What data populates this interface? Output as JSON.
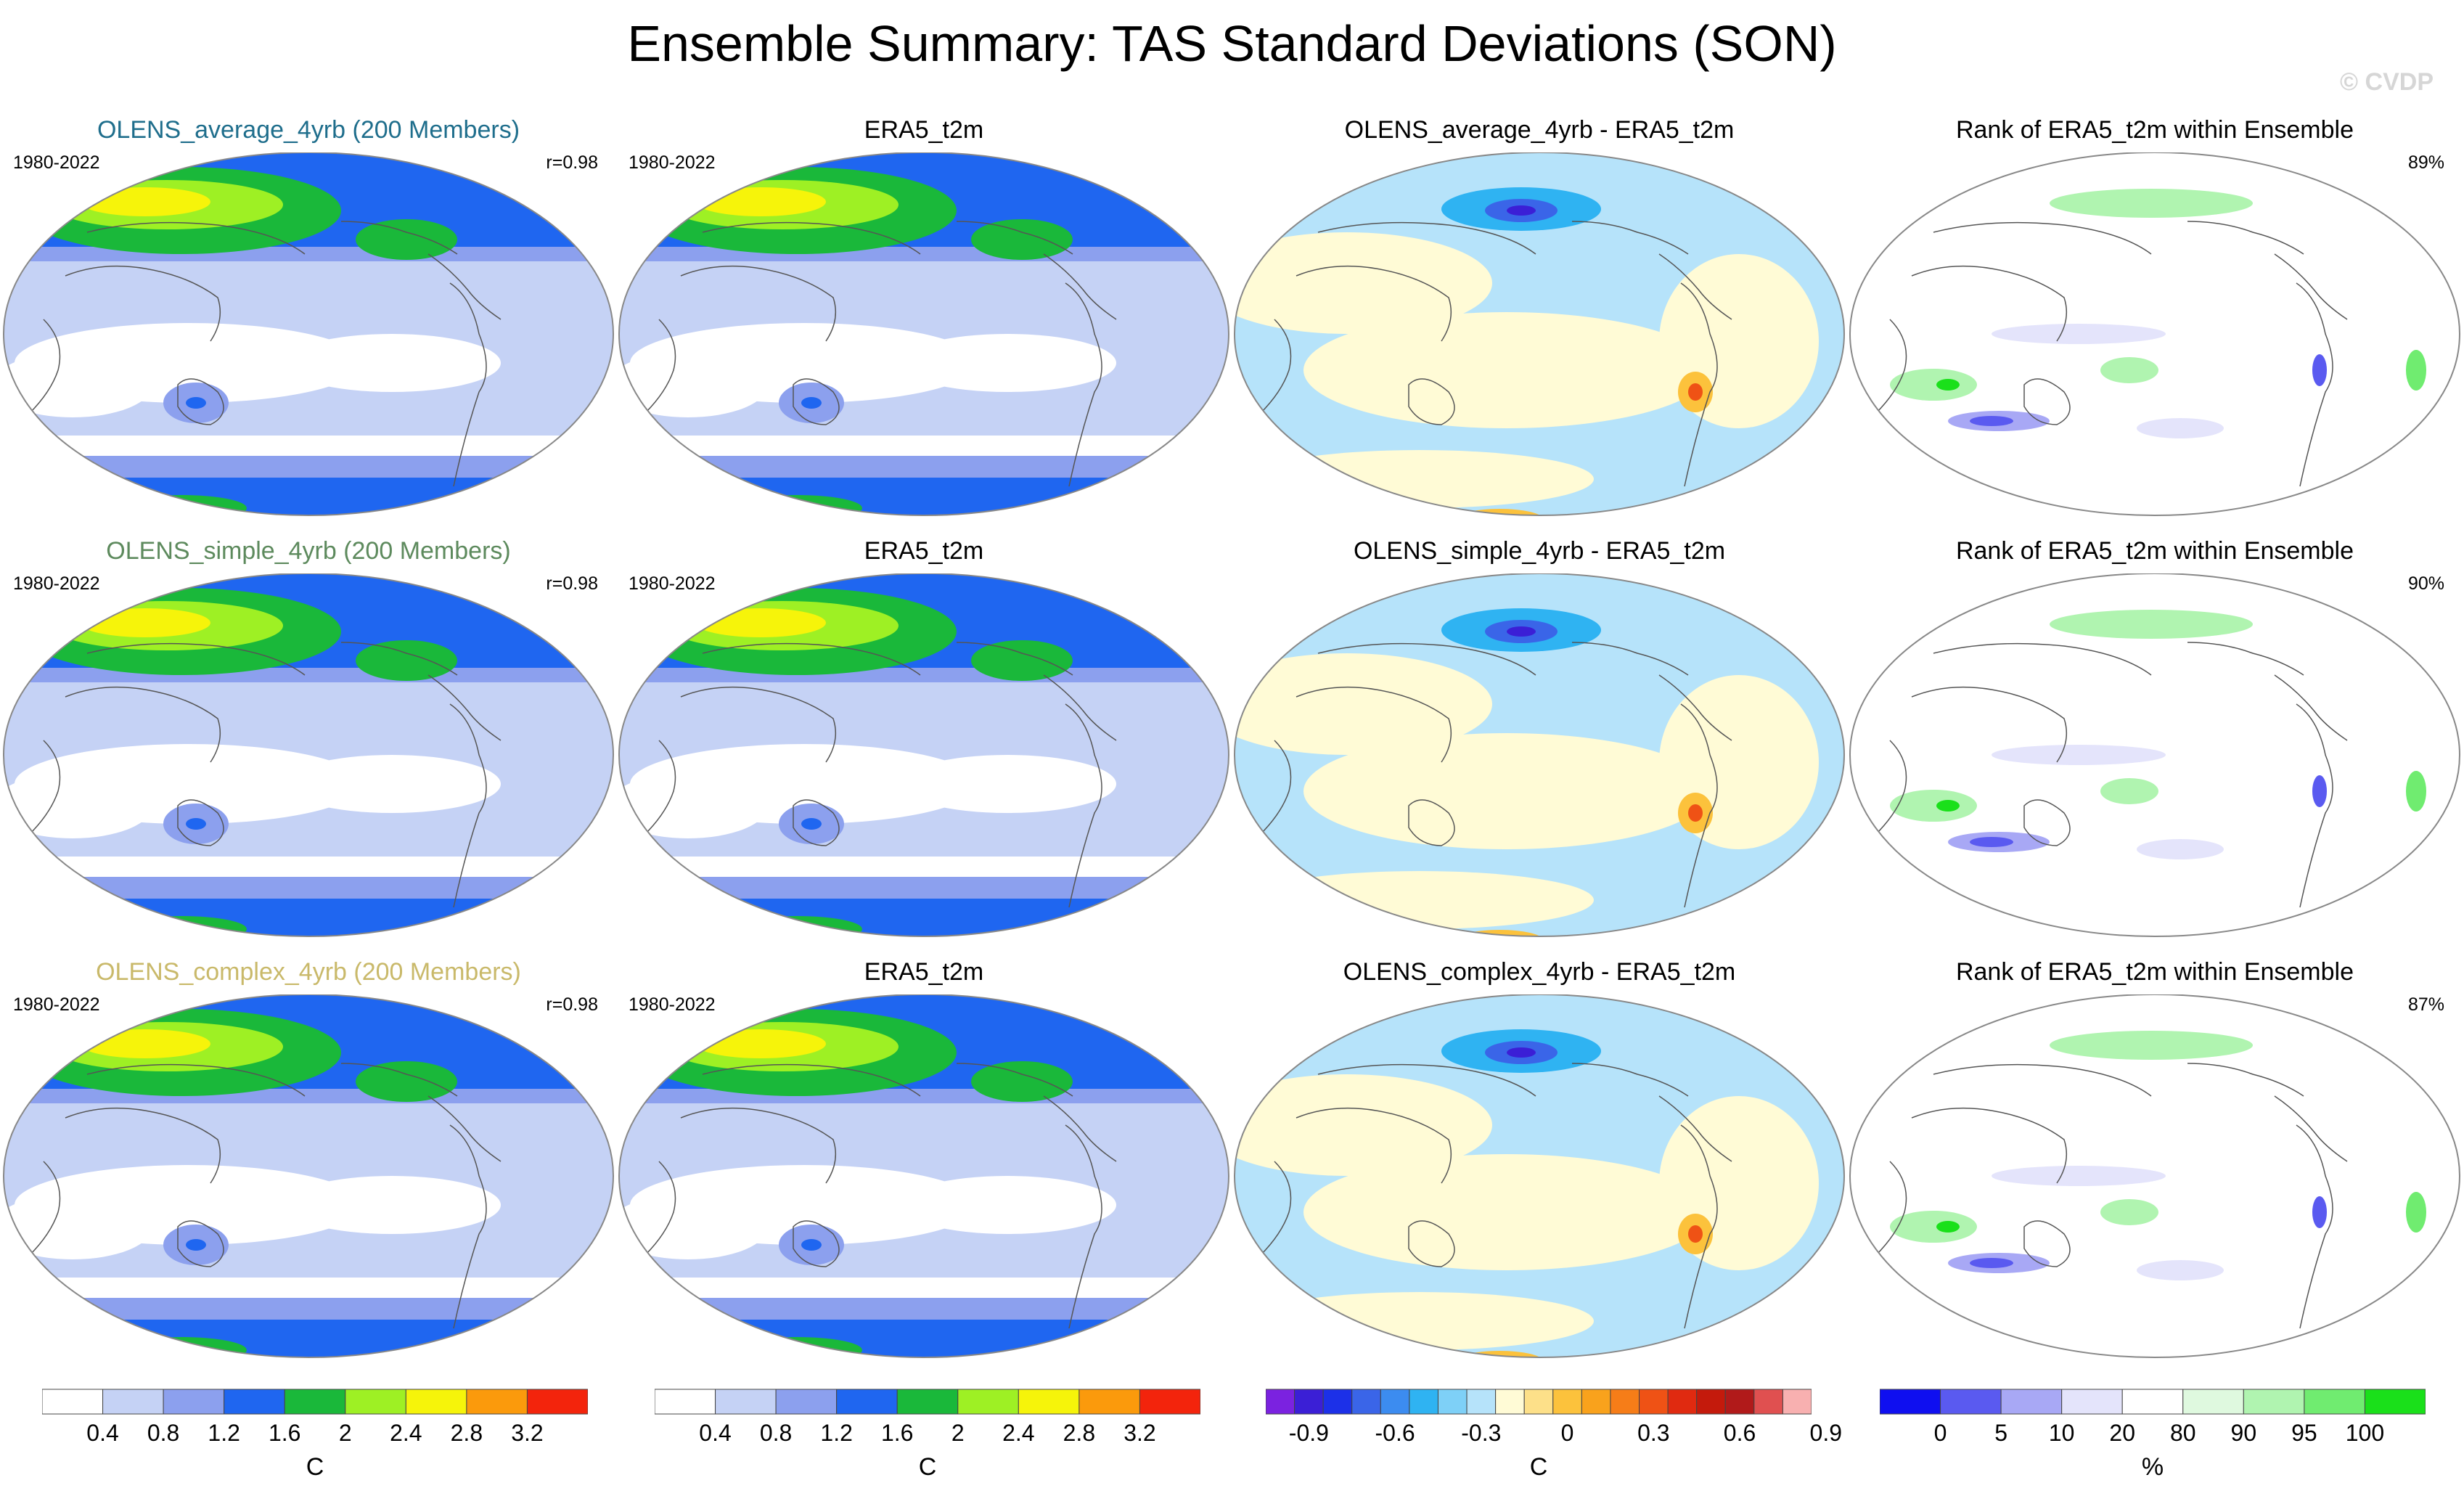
{
  "title": "Ensemble Summary: TAS Standard Deviations (SON)",
  "copyright": "© CVDP",
  "panels": [
    {
      "title": "OLENS_average_4yrb (200 Members)",
      "title_color": "#1f6e8c",
      "years": "1980-2022",
      "corr": "r=0.98",
      "kind": "std"
    },
    {
      "title": "ERA5_t2m",
      "title_color": "#000000",
      "years": "1980-2022",
      "corr": "",
      "kind": "std"
    },
    {
      "title": "OLENS_average_4yrb - ERA5_t2m",
      "title_color": "#000000",
      "years": "",
      "corr": "",
      "kind": "diff"
    },
    {
      "title": "Rank of ERA5_t2m within Ensemble",
      "title_color": "#000000",
      "years": "",
      "corr": "89%",
      "kind": "rank"
    },
    {
      "title": "OLENS_simple_4yrb (200 Members)",
      "title_color": "#5d8a5d",
      "years": "1980-2022",
      "corr": "r=0.98",
      "kind": "std"
    },
    {
      "title": "ERA5_t2m",
      "title_color": "#000000",
      "years": "1980-2022",
      "corr": "",
      "kind": "std"
    },
    {
      "title": "OLENS_simple_4yrb - ERA5_t2m",
      "title_color": "#000000",
      "years": "",
      "corr": "",
      "kind": "diff"
    },
    {
      "title": "Rank of ERA5_t2m within Ensemble",
      "title_color": "#000000",
      "years": "",
      "corr": "90%",
      "kind": "rank"
    },
    {
      "title": "OLENS_complex_4yrb (200 Members)",
      "title_color": "#c9b96a",
      "years": "1980-2022",
      "corr": "r=0.98",
      "kind": "std"
    },
    {
      "title": "ERA5_t2m",
      "title_color": "#000000",
      "years": "1980-2022",
      "corr": "",
      "kind": "std"
    },
    {
      "title": "OLENS_complex_4yrb - ERA5_t2m",
      "title_color": "#000000",
      "years": "",
      "corr": "",
      "kind": "diff"
    },
    {
      "title": "Rank of ERA5_t2m within Ensemble",
      "title_color": "#000000",
      "years": "",
      "corr": "87%",
      "kind": "rank"
    }
  ],
  "colorbars": [
    {
      "units": "C",
      "colors": [
        "#ffffff",
        "#c5d2f5",
        "#8ca0ee",
        "#1f66f0",
        "#1ab83a",
        "#9ef024",
        "#f6f40a",
        "#fb9a0c",
        "#f3240c"
      ],
      "labels": [
        "0.4",
        "0.8",
        "1.2",
        "1.6",
        "2",
        "2.4",
        "2.8",
        "3.2"
      ]
    },
    {
      "units": "C",
      "colors": [
        "#ffffff",
        "#c5d2f5",
        "#8ca0ee",
        "#1f66f0",
        "#1ab83a",
        "#9ef024",
        "#f6f40a",
        "#fb9a0c",
        "#f3240c"
      ],
      "labels": [
        "0.4",
        "0.8",
        "1.2",
        "1.6",
        "2",
        "2.4",
        "2.8",
        "3.2"
      ]
    },
    {
      "units": "C",
      "colors": [
        "#7b22e0",
        "#3b1fd6",
        "#1c30e8",
        "#3a65e8",
        "#3c8cf0",
        "#2fb3f2",
        "#7ed0f7",
        "#b6e3fa",
        "#fffbd6",
        "#fde089",
        "#fcc23c",
        "#f9a21c",
        "#f67d18",
        "#ef5215",
        "#e02a10",
        "#c41a0c",
        "#b11a1a",
        "#e05050",
        "#f8b0b0"
      ],
      "labels": [
        "-0.9",
        "-0.6",
        "-0.3",
        "0",
        "0.3",
        "0.6",
        "0.9"
      ]
    },
    {
      "units": "%",
      "colors": [
        "#0f0ff0",
        "#5a5af0",
        "#a8a8f5",
        "#e4e4fb",
        "#ffffff",
        "#dff9df",
        "#b0f4b0",
        "#70ec70",
        "#1ae01a"
      ],
      "labels": [
        "0",
        "5",
        "10",
        "20",
        "80",
        "90",
        "95",
        "100"
      ]
    }
  ],
  "chart_data": {
    "type": "heatmap",
    "title": "Ensemble Summary: TAS Standard Deviations (SON)",
    "projection": "Robinson, Pacific-centered",
    "period": "1980-2022",
    "std_colorbar": {
      "units": "C",
      "levels": [
        0.4,
        0.8,
        1.2,
        1.6,
        2,
        2.4,
        2.8,
        3.2
      ]
    },
    "diff_colorbar": {
      "units": "C",
      "levels": [
        -0.9,
        -0.6,
        -0.3,
        0,
        0.3,
        0.6,
        0.9
      ]
    },
    "rank_colorbar": {
      "units": "%",
      "levels": [
        0,
        5,
        10,
        20,
        80,
        90,
        95,
        100
      ]
    },
    "pattern_correlations": [
      {
        "ensemble": "OLENS_average_4yrb",
        "members": 200,
        "r": 0.98,
        "rank_pct_area": 89
      },
      {
        "ensemble": "OLENS_simple_4yrb",
        "members": 200,
        "r": 0.98,
        "rank_pct_area": 90
      },
      {
        "ensemble": "OLENS_complex_4yrb",
        "members": 200,
        "r": 0.98,
        "rank_pct_area": 87
      }
    ]
  }
}
